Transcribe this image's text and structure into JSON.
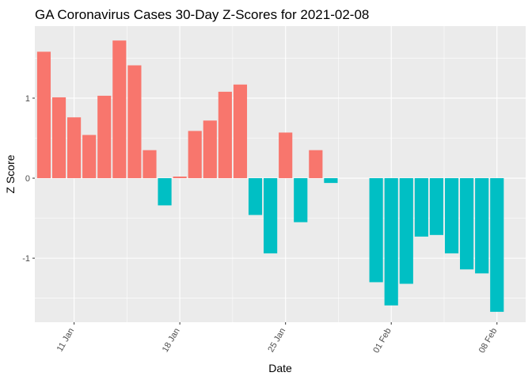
{
  "chart_data": {
    "type": "bar",
    "title": "GA Coronavirus Cases 30-Day Z-Scores for 2021-02-08",
    "xlabel": "Date",
    "ylabel": "Z Score",
    "ylim": [
      -1.8,
      1.9
    ],
    "yticks": [
      -1,
      0,
      1
    ],
    "ytick_labels": [
      "-1",
      "0",
      "1"
    ],
    "xticks": [
      {
        "day": 11,
        "label": "11 Jan"
      },
      {
        "day": 18,
        "label": "18 Jan"
      },
      {
        "day": 25,
        "label": "25 Jan"
      },
      {
        "day": 32,
        "label": "01 Feb"
      },
      {
        "day": 39,
        "label": "08 Feb"
      }
    ],
    "xlim": [
      8.4,
      40.9
    ],
    "grid": true,
    "colors": {
      "positive": "#F8766D",
      "negative": "#00BFC4",
      "panel": "#EBEBEB",
      "grid": "#FFFFFF"
    },
    "bars": [
      {
        "date": "2021-01-09",
        "day": 9,
        "value": 1.58
      },
      {
        "date": "2021-01-10",
        "day": 10,
        "value": 1.01
      },
      {
        "date": "2021-01-11",
        "day": 11,
        "value": 0.76
      },
      {
        "date": "2021-01-12",
        "day": 12,
        "value": 0.54
      },
      {
        "date": "2021-01-13",
        "day": 13,
        "value": 1.03
      },
      {
        "date": "2021-01-14",
        "day": 14,
        "value": 1.72
      },
      {
        "date": "2021-01-15",
        "day": 15,
        "value": 1.41
      },
      {
        "date": "2021-01-16",
        "day": 16,
        "value": 0.35
      },
      {
        "date": "2021-01-17",
        "day": 17,
        "value": -0.34
      },
      {
        "date": "2021-01-18",
        "day": 18,
        "value": 0.02
      },
      {
        "date": "2021-01-19",
        "day": 19,
        "value": 0.59
      },
      {
        "date": "2021-01-20",
        "day": 20,
        "value": 0.72
      },
      {
        "date": "2021-01-21",
        "day": 21,
        "value": 1.08
      },
      {
        "date": "2021-01-22",
        "day": 22,
        "value": 1.17
      },
      {
        "date": "2021-01-23",
        "day": 23,
        "value": -0.46
      },
      {
        "date": "2021-01-24",
        "day": 24,
        "value": -0.94
      },
      {
        "date": "2021-01-25",
        "day": 25,
        "value": 0.57
      },
      {
        "date": "2021-01-26",
        "day": 26,
        "value": -0.55
      },
      {
        "date": "2021-01-27",
        "day": 27,
        "value": 0.35
      },
      {
        "date": "2021-01-28",
        "day": 28,
        "value": -0.06
      },
      {
        "date": "2021-01-31",
        "day": 31,
        "value": -1.3
      },
      {
        "date": "2021-02-01",
        "day": 32,
        "value": -1.59
      },
      {
        "date": "2021-02-02",
        "day": 33,
        "value": -1.32
      },
      {
        "date": "2021-02-03",
        "day": 34,
        "value": -0.73
      },
      {
        "date": "2021-02-04",
        "day": 35,
        "value": -0.71
      },
      {
        "date": "2021-02-05",
        "day": 36,
        "value": -0.94
      },
      {
        "date": "2021-02-06",
        "day": 37,
        "value": -1.14
      },
      {
        "date": "2021-02-07",
        "day": 38,
        "value": -1.19
      },
      {
        "date": "2021-02-08",
        "day": 39,
        "value": -1.67
      }
    ]
  }
}
